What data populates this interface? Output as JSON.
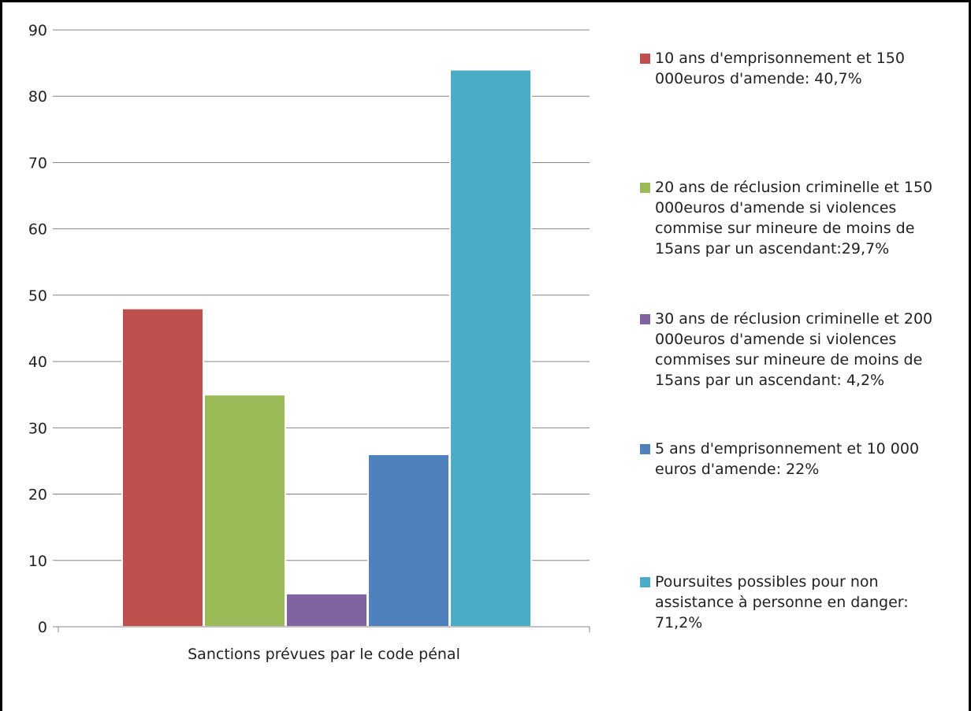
{
  "chart_data": {
    "type": "bar",
    "xlabel": "Sanctions prévues par le code pénal",
    "ylim": [
      0,
      90
    ],
    "ytick_step": 10,
    "grid": true,
    "legend_position": "right",
    "series": [
      {
        "name": "10 ans d'emprisonnement et 150 000euros d'amende: 40,7%",
        "value": 48,
        "color": "#C0504D"
      },
      {
        "name": "20 ans de réclusion criminelle et 150 000euros d'amende si violences commise sur mineure de moins de 15ans par un ascendant:29,7%",
        "value": 35,
        "color": "#9BBB59"
      },
      {
        "name": "30 ans de réclusion criminelle et 200 000euros d'amende si violences commises sur mineure de moins de 15ans par un ascendant: 4,2%",
        "value": 5,
        "color": "#8064A2"
      },
      {
        "name": "5 ans d'emprisonnement et 10 000 euros d'amende: 22%",
        "value": 26,
        "color": "#4F81BD"
      },
      {
        "name": "Poursuites possibles pour non assistance à personne en danger: 71,2%",
        "value": 84,
        "color": "#4BACC6"
      }
    ]
  }
}
